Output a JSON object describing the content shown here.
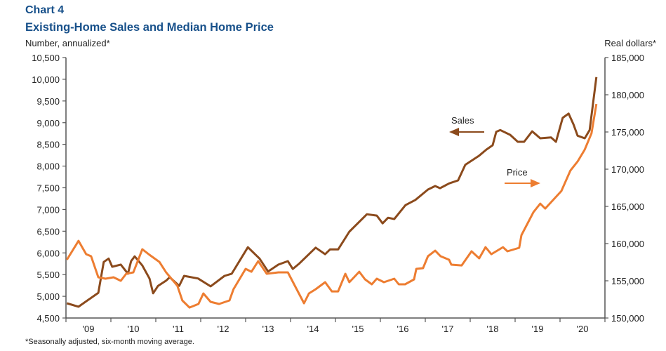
{
  "title": "Chart 4",
  "subtitle": "Existing-Home Sales and Median Home Price",
  "footnote": "*Seasonally adjusted, six-month moving average.",
  "colors": {
    "title": "#17508a",
    "sales": "#8b4a1c",
    "price": "#ed7d31",
    "axis": "#555555"
  },
  "chart_data": {
    "type": "line",
    "ylabel_left": "Number, annualized*",
    "ylabel_right": "Real dollars*",
    "xlim": [
      2009,
      2021
    ],
    "ylim_left": [
      4500,
      10500
    ],
    "ylim_right": [
      150000,
      185000
    ],
    "x_tick_labels": [
      "'09",
      "'10",
      "'11",
      "'12",
      "'13",
      "'14",
      "'15",
      "'16",
      "'17",
      "'18",
      "'19",
      "'20"
    ],
    "y_left_ticks": [
      "4,500",
      "5,000",
      "5,500",
      "6,000",
      "6,500",
      "7,000",
      "7,500",
      "8,000",
      "8,500",
      "9,000",
      "9,500",
      "10,000",
      "10,500"
    ],
    "y_right_ticks": [
      "150,000",
      "155,000",
      "160,000",
      "165,000",
      "170,000",
      "175,000",
      "180,000",
      "185,000"
    ],
    "grid": false,
    "annotations": [
      {
        "text": "Sales",
        "arrow": "left",
        "series": "sales"
      },
      {
        "text": "Price",
        "arrow": "right",
        "series": "price"
      }
    ],
    "series": [
      {
        "name": "Sales",
        "axis": "left",
        "points": [
          [
            2009.02,
            4840
          ],
          [
            2009.28,
            4760
          ],
          [
            2009.72,
            5080
          ],
          [
            2009.84,
            5790
          ],
          [
            2009.95,
            5870
          ],
          [
            2010.03,
            5680
          ],
          [
            2010.22,
            5730
          ],
          [
            2010.38,
            5520
          ],
          [
            2010.45,
            5810
          ],
          [
            2010.53,
            5920
          ],
          [
            2010.7,
            5710
          ],
          [
            2010.86,
            5410
          ],
          [
            2010.94,
            5070
          ],
          [
            2011.05,
            5240
          ],
          [
            2011.23,
            5360
          ],
          [
            2011.31,
            5440
          ],
          [
            2011.52,
            5240
          ],
          [
            2011.63,
            5470
          ],
          [
            2011.94,
            5410
          ],
          [
            2012.22,
            5230
          ],
          [
            2012.53,
            5470
          ],
          [
            2012.69,
            5520
          ],
          [
            2013.05,
            6130
          ],
          [
            2013.31,
            5870
          ],
          [
            2013.5,
            5570
          ],
          [
            2013.73,
            5730
          ],
          [
            2013.94,
            5810
          ],
          [
            2014.05,
            5630
          ],
          [
            2014.2,
            5760
          ],
          [
            2014.56,
            6120
          ],
          [
            2014.77,
            5970
          ],
          [
            2014.88,
            6080
          ],
          [
            2015.06,
            6080
          ],
          [
            2015.31,
            6490
          ],
          [
            2015.7,
            6890
          ],
          [
            2015.92,
            6860
          ],
          [
            2016.05,
            6680
          ],
          [
            2016.17,
            6810
          ],
          [
            2016.31,
            6780
          ],
          [
            2016.56,
            7100
          ],
          [
            2016.78,
            7220
          ],
          [
            2017.06,
            7460
          ],
          [
            2017.22,
            7540
          ],
          [
            2017.33,
            7490
          ],
          [
            2017.53,
            7600
          ],
          [
            2017.73,
            7670
          ],
          [
            2017.89,
            8030
          ],
          [
            2018.2,
            8240
          ],
          [
            2018.36,
            8380
          ],
          [
            2018.5,
            8480
          ],
          [
            2018.58,
            8790
          ],
          [
            2018.67,
            8830
          ],
          [
            2018.89,
            8720
          ],
          [
            2019.06,
            8560
          ],
          [
            2019.2,
            8560
          ],
          [
            2019.38,
            8800
          ],
          [
            2019.56,
            8640
          ],
          [
            2019.8,
            8660
          ],
          [
            2019.91,
            8560
          ],
          [
            2020.06,
            9110
          ],
          [
            2020.19,
            9210
          ],
          [
            2020.3,
            8960
          ],
          [
            2020.39,
            8700
          ],
          [
            2020.55,
            8640
          ],
          [
            2020.66,
            8830
          ],
          [
            2020.81,
            10050
          ]
        ]
      },
      {
        "name": "Price",
        "axis": "right",
        "points": [
          [
            2009.02,
            157830
          ],
          [
            2009.28,
            160370
          ],
          [
            2009.45,
            158580
          ],
          [
            2009.56,
            158300
          ],
          [
            2009.72,
            155470
          ],
          [
            2009.88,
            155280
          ],
          [
            2010.06,
            155470
          ],
          [
            2010.22,
            155000
          ],
          [
            2010.34,
            155940
          ],
          [
            2010.5,
            156130
          ],
          [
            2010.7,
            159240
          ],
          [
            2010.86,
            158490
          ],
          [
            2011.08,
            157540
          ],
          [
            2011.23,
            156130
          ],
          [
            2011.48,
            154340
          ],
          [
            2011.59,
            152360
          ],
          [
            2011.75,
            151410
          ],
          [
            2011.95,
            151890
          ],
          [
            2012.06,
            153300
          ],
          [
            2012.22,
            152170
          ],
          [
            2012.41,
            151890
          ],
          [
            2012.64,
            152360
          ],
          [
            2012.73,
            153870
          ],
          [
            2013.0,
            156600
          ],
          [
            2013.13,
            156220
          ],
          [
            2013.28,
            157640
          ],
          [
            2013.47,
            155940
          ],
          [
            2013.73,
            156130
          ],
          [
            2013.94,
            156130
          ],
          [
            2014.3,
            151980
          ],
          [
            2014.41,
            153300
          ],
          [
            2014.56,
            153870
          ],
          [
            2014.77,
            154810
          ],
          [
            2014.92,
            153580
          ],
          [
            2015.06,
            153580
          ],
          [
            2015.22,
            155940
          ],
          [
            2015.31,
            154810
          ],
          [
            2015.53,
            156220
          ],
          [
            2015.66,
            155190
          ],
          [
            2015.81,
            154530
          ],
          [
            2015.92,
            155280
          ],
          [
            2016.08,
            154810
          ],
          [
            2016.31,
            155280
          ],
          [
            2016.41,
            154530
          ],
          [
            2016.55,
            154530
          ],
          [
            2016.75,
            155190
          ],
          [
            2016.8,
            156600
          ],
          [
            2016.95,
            156700
          ],
          [
            2017.06,
            158300
          ],
          [
            2017.22,
            159050
          ],
          [
            2017.34,
            158300
          ],
          [
            2017.53,
            157830
          ],
          [
            2017.58,
            157170
          ],
          [
            2017.81,
            157070
          ],
          [
            2018.03,
            158960
          ],
          [
            2018.2,
            158020
          ],
          [
            2018.34,
            159520
          ],
          [
            2018.47,
            158580
          ],
          [
            2018.73,
            159520
          ],
          [
            2018.83,
            158960
          ],
          [
            2019.09,
            159430
          ],
          [
            2019.14,
            161130
          ],
          [
            2019.41,
            164240
          ],
          [
            2019.56,
            165370
          ],
          [
            2019.67,
            164710
          ],
          [
            2019.77,
            165370
          ],
          [
            2020.03,
            167070
          ],
          [
            2020.23,
            169800
          ],
          [
            2020.39,
            171030
          ],
          [
            2020.55,
            172630
          ],
          [
            2020.7,
            174800
          ],
          [
            2020.81,
            178760
          ]
        ]
      }
    ]
  }
}
